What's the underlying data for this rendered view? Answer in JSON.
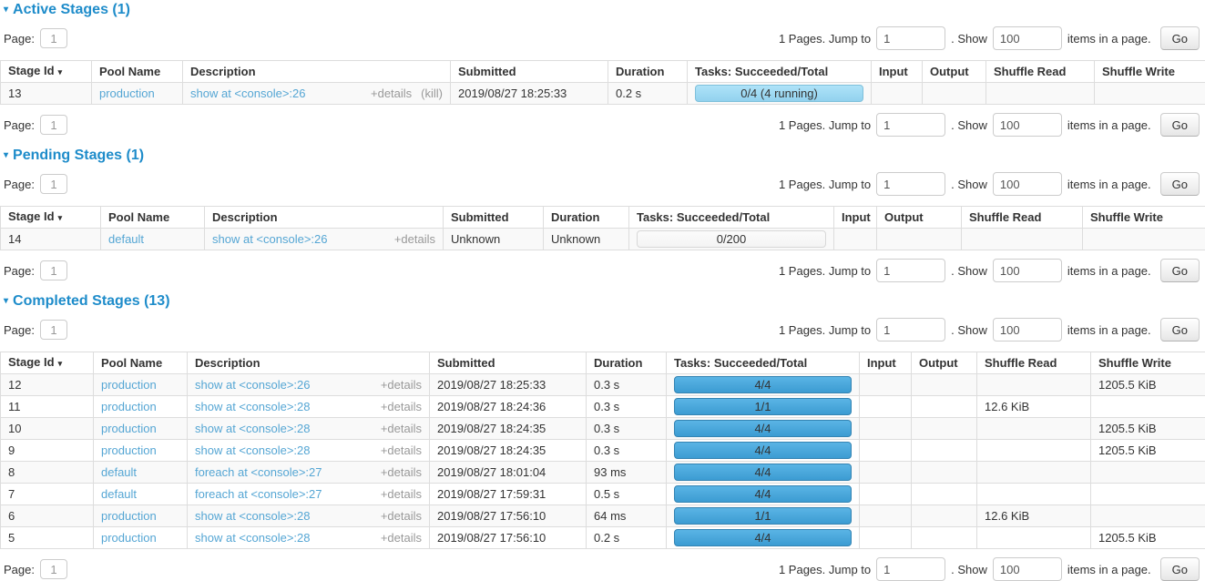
{
  "icons": {
    "collapse_arrow": "▾",
    "sort_desc_arrow": "▾"
  },
  "colors": {
    "section_header": "#1e8cca",
    "link": "#55a6d4",
    "muted_text": "#999999",
    "text": "#333333",
    "table_border": "#dddddd",
    "stripe": "#f9f9f9",
    "bar_completed": "#42a4da",
    "bar_running": "#a3ddf5",
    "bar_pending": "#fafafa"
  },
  "pagination": {
    "page_label": "Page:",
    "page_value": "1",
    "pages_text": "1 Pages. Jump to",
    "jump_value": "1",
    "show_text": ". Show",
    "show_value": "100",
    "items_text": "items in a page.",
    "go_label": "Go"
  },
  "columns": [
    "Stage Id",
    "Pool Name",
    "Description",
    "Submitted",
    "Duration",
    "Tasks: Succeeded/Total",
    "Input",
    "Output",
    "Shuffle Read",
    "Shuffle Write"
  ],
  "sections": [
    {
      "title": "Active Stages (1)",
      "rows": [
        {
          "stage_id": "13",
          "pool": "production",
          "description": "show at <console>:26",
          "details": "+details",
          "kill": "(kill)",
          "submitted": "2019/08/27 18:25:33",
          "duration": "0.2 s",
          "tasks": {
            "label": "0/4 (4 running)",
            "state": "running"
          },
          "input": "",
          "output": "",
          "shuffle_read": "",
          "shuffle_write": ""
        }
      ]
    },
    {
      "title": "Pending Stages (1)",
      "rows": [
        {
          "stage_id": "14",
          "pool": "default",
          "description": "show at <console>:26",
          "details": "+details",
          "submitted": "Unknown",
          "duration": "Unknown",
          "tasks": {
            "label": "0/200",
            "state": "pending"
          },
          "input": "",
          "output": "",
          "shuffle_read": "",
          "shuffle_write": ""
        }
      ]
    },
    {
      "title": "Completed Stages (13)",
      "rows": [
        {
          "stage_id": "12",
          "pool": "production",
          "description": "show at <console>:26",
          "details": "+details",
          "submitted": "2019/08/27 18:25:33",
          "duration": "0.3 s",
          "tasks": {
            "label": "4/4",
            "state": "completed"
          },
          "input": "",
          "output": "",
          "shuffle_read": "",
          "shuffle_write": "1205.5 KiB"
        },
        {
          "stage_id": "11",
          "pool": "production",
          "description": "show at <console>:28",
          "details": "+details",
          "submitted": "2019/08/27 18:24:36",
          "duration": "0.3 s",
          "tasks": {
            "label": "1/1",
            "state": "completed"
          },
          "input": "",
          "output": "",
          "shuffle_read": "12.6 KiB",
          "shuffle_write": ""
        },
        {
          "stage_id": "10",
          "pool": "production",
          "description": "show at <console>:28",
          "details": "+details",
          "submitted": "2019/08/27 18:24:35",
          "duration": "0.3 s",
          "tasks": {
            "label": "4/4",
            "state": "completed"
          },
          "input": "",
          "output": "",
          "shuffle_read": "",
          "shuffle_write": "1205.5 KiB"
        },
        {
          "stage_id": "9",
          "pool": "production",
          "description": "show at <console>:28",
          "details": "+details",
          "submitted": "2019/08/27 18:24:35",
          "duration": "0.3 s",
          "tasks": {
            "label": "4/4",
            "state": "completed"
          },
          "input": "",
          "output": "",
          "shuffle_read": "",
          "shuffle_write": "1205.5 KiB"
        },
        {
          "stage_id": "8",
          "pool": "default",
          "description": "foreach at <console>:27",
          "details": "+details",
          "submitted": "2019/08/27 18:01:04",
          "duration": "93 ms",
          "tasks": {
            "label": "4/4",
            "state": "completed"
          },
          "input": "",
          "output": "",
          "shuffle_read": "",
          "shuffle_write": ""
        },
        {
          "stage_id": "7",
          "pool": "default",
          "description": "foreach at <console>:27",
          "details": "+details",
          "submitted": "2019/08/27 17:59:31",
          "duration": "0.5 s",
          "tasks": {
            "label": "4/4",
            "state": "completed"
          },
          "input": "",
          "output": "",
          "shuffle_read": "",
          "shuffle_write": ""
        },
        {
          "stage_id": "6",
          "pool": "production",
          "description": "show at <console>:28",
          "details": "+details",
          "submitted": "2019/08/27 17:56:10",
          "duration": "64 ms",
          "tasks": {
            "label": "1/1",
            "state": "completed"
          },
          "input": "",
          "output": "",
          "shuffle_read": "12.6 KiB",
          "shuffle_write": ""
        },
        {
          "stage_id": "5",
          "pool": "production",
          "description": "show at <console>:28",
          "details": "+details",
          "submitted": "2019/08/27 17:56:10",
          "duration": "0.2 s",
          "tasks": {
            "label": "4/4",
            "state": "completed"
          },
          "input": "",
          "output": "",
          "shuffle_read": "",
          "shuffle_write": "1205.5 KiB"
        }
      ]
    }
  ]
}
